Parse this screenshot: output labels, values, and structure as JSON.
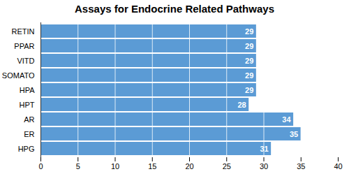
{
  "chart_data": {
    "type": "bar",
    "orientation": "horizontal",
    "title": "Assays for Endocrine Related Pathways",
    "categories": [
      "HPG",
      "ER",
      "AR",
      "HPT",
      "HPA",
      "SOMATO",
      "VITD",
      "PPAR",
      "RETIN"
    ],
    "values": [
      31,
      35,
      34,
      28,
      29,
      29,
      29,
      29,
      29
    ],
    "color": "#5b9bd5",
    "xlim": [
      0,
      40
    ],
    "xticks": [
      0,
      5,
      10,
      15,
      20,
      25,
      30,
      35,
      40
    ],
    "grid": true,
    "data_labels": true
  }
}
